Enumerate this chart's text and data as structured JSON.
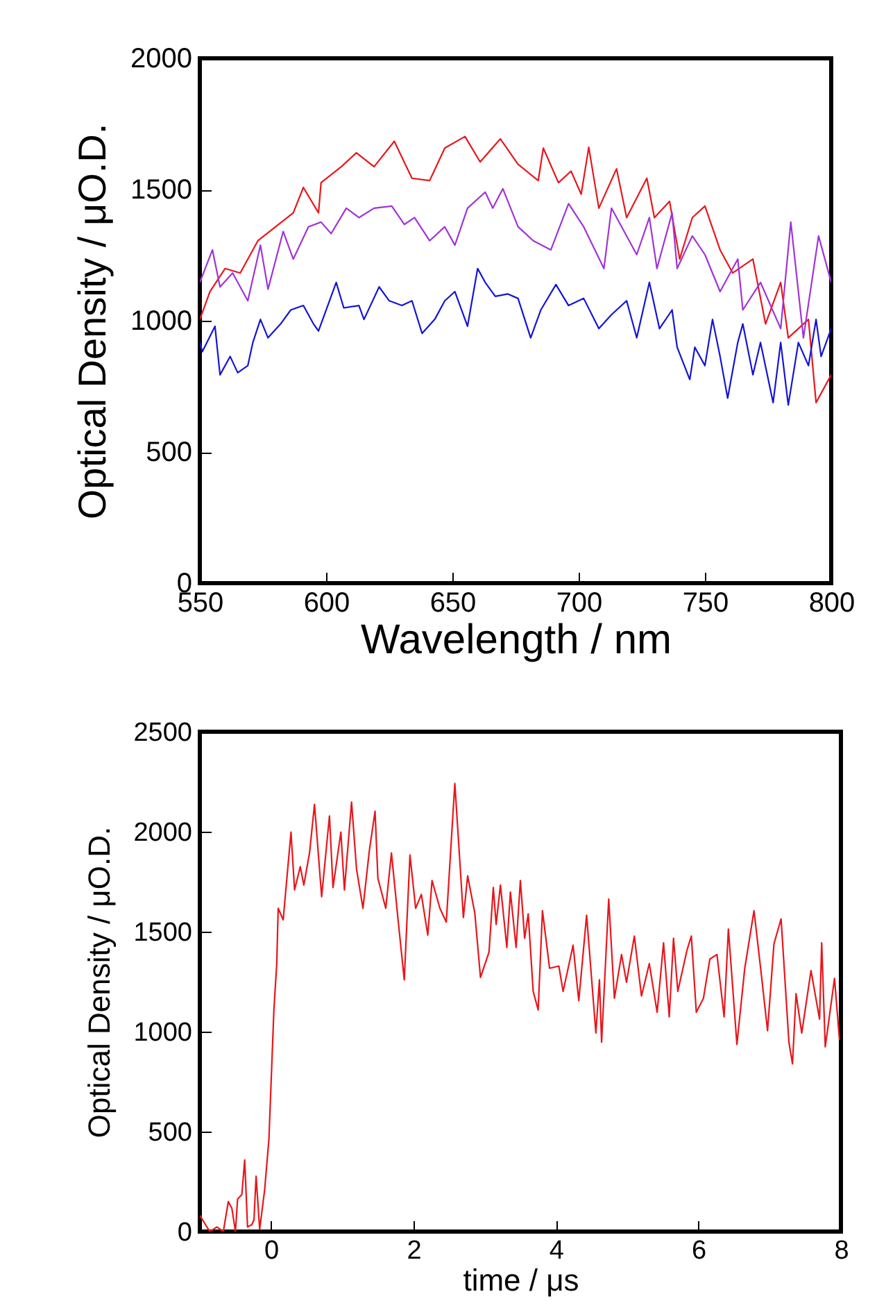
{
  "chart_data": [
    {
      "type": "line",
      "xlabel": "Wavelength / nm",
      "ylabel": "Optical Density / μO.D.",
      "xlim": [
        550,
        800
      ],
      "ylim": [
        0,
        2000
      ],
      "xticks": [
        550,
        600,
        650,
        700,
        750,
        800
      ],
      "yticks": [
        0,
        500,
        1000,
        1500,
        2000
      ],
      "series": [
        {
          "color": "#e8161b",
          "x": [
            550,
            554,
            560,
            566,
            573,
            580,
            587,
            591,
            597,
            598,
            606,
            612,
            619,
            627,
            634,
            641,
            647,
            655,
            661,
            669,
            676,
            684,
            686,
            692,
            697,
            701,
            704,
            708,
            715,
            719,
            727,
            730,
            736,
            740,
            745,
            750,
            756,
            761,
            769,
            774,
            780,
            783,
            791,
            794,
            800
          ],
          "values": [
            1005,
            1111,
            1199,
            1182,
            1305,
            1358,
            1411,
            1508,
            1411,
            1526,
            1587,
            1640,
            1587,
            1684,
            1543,
            1534,
            1658,
            1702,
            1605,
            1693,
            1596,
            1534,
            1658,
            1526,
            1570,
            1482,
            1661,
            1429,
            1579,
            1393,
            1543,
            1393,
            1455,
            1235,
            1393,
            1437,
            1270,
            1182,
            1235,
            988,
            1146,
            935,
            1005,
            688,
            794
          ]
        },
        {
          "color": "#a033d8",
          "x": [
            550,
            555,
            558,
            563,
            569,
            574,
            577,
            583,
            587,
            593,
            598,
            602,
            608,
            613,
            619,
            626,
            631,
            635,
            641,
            647,
            651,
            656,
            663,
            666,
            670,
            676,
            682,
            689,
            696,
            702,
            710,
            713,
            719,
            723,
            728,
            731,
            737,
            739,
            745,
            750,
            756,
            763,
            765,
            772,
            780,
            784,
            789,
            795,
            800
          ],
          "values": [
            1146,
            1270,
            1129,
            1182,
            1076,
            1288,
            1120,
            1340,
            1235,
            1358,
            1376,
            1332,
            1429,
            1393,
            1429,
            1437,
            1367,
            1393,
            1305,
            1358,
            1288,
            1429,
            1490,
            1429,
            1503,
            1358,
            1305,
            1270,
            1446,
            1358,
            1199,
            1429,
            1323,
            1252,
            1393,
            1199,
            1411,
            1199,
            1323,
            1252,
            1111,
            1235,
            1041,
            1146,
            970,
            1376,
            935,
            1323,
            1146
          ]
        },
        {
          "color": "#1414d6",
          "x": [
            550,
            551,
            556,
            558,
            562,
            565,
            569,
            571,
            574,
            577,
            582,
            586,
            591,
            595,
            597,
            604,
            607,
            613,
            615,
            621,
            625,
            630,
            634,
            638,
            643,
            647,
            651,
            656,
            660,
            663,
            667,
            672,
            676,
            681,
            685,
            691,
            696,
            702,
            708,
            713,
            719,
            723,
            728,
            732,
            737,
            739,
            744,
            746,
            750,
            753,
            756,
            759,
            763,
            765,
            769,
            772,
            777,
            780,
            783,
            787,
            791,
            794,
            796,
            800
          ],
          "values": [
            917,
            882,
            979,
            794,
            864,
            802,
            829,
            917,
            1005,
            935,
            988,
            1041,
            1058,
            988,
            961,
            1146,
            1049,
            1058,
            1005,
            1129,
            1076,
            1058,
            1076,
            952,
            1005,
            1076,
            1111,
            979,
            1199,
            1146,
            1093,
            1102,
            1085,
            935,
            1041,
            1138,
            1058,
            1085,
            970,
            1023,
            1076,
            935,
            1146,
            970,
            1041,
            899,
            776,
            899,
            829,
            1005,
            864,
            705,
            917,
            988,
            794,
            917,
            688,
            917,
            679,
            917,
            829,
            1005,
            864,
            970
          ]
        }
      ]
    },
    {
      "type": "line",
      "xlabel": "time / μs",
      "ylabel": "Optical Density / μO.D.",
      "xlim": [
        -1,
        8
      ],
      "ylim": [
        0,
        2500
      ],
      "xticks": [
        0,
        2,
        4,
        6,
        8
      ],
      "yticks": [
        0,
        500,
        1000,
        1500,
        2000,
        2500
      ],
      "series": [
        {
          "color": "#e8161b",
          "x": [
            -1.0,
            -0.94,
            -0.86,
            -0.76,
            -0.67,
            -0.6,
            -0.55,
            -0.5,
            -0.47,
            -0.41,
            -0.37,
            -0.33,
            -0.27,
            -0.24,
            -0.21,
            -0.16,
            -0.09,
            -0.03,
            0.04,
            0.08,
            0.1,
            0.17,
            0.28,
            0.33,
            0.41,
            0.46,
            0.54,
            0.61,
            0.71,
            0.82,
            0.87,
            0.98,
            1.03,
            1.13,
            1.2,
            1.29,
            1.38,
            1.46,
            1.5,
            1.61,
            1.69,
            1.78,
            1.87,
            1.95,
            2.03,
            2.11,
            2.2,
            2.26,
            2.37,
            2.46,
            2.58,
            2.63,
            2.7,
            2.76,
            2.86,
            2.94,
            3.06,
            3.12,
            3.16,
            3.22,
            3.31,
            3.36,
            3.44,
            3.5,
            3.56,
            3.61,
            3.68,
            3.75,
            3.81,
            3.91,
            4.04,
            4.1,
            4.24,
            4.32,
            4.43,
            4.56,
            4.61,
            4.64,
            4.74,
            4.82,
            4.92,
            4.99,
            5.1,
            5.2,
            5.31,
            5.42,
            5.51,
            5.59,
            5.65,
            5.71,
            5.84,
            5.9,
            5.97,
            6.07,
            6.16,
            6.26,
            6.36,
            6.42,
            6.54,
            6.65,
            6.78,
            6.88,
            6.97,
            7.06,
            7.16,
            7.27,
            7.32,
            7.37,
            7.45,
            7.58,
            7.7,
            7.73,
            7.78,
            7.91,
            7.98
          ],
          "values": [
            81,
            46,
            0,
            23,
            0,
            150,
            116,
            0,
            162,
            185,
            358,
            23,
            35,
            58,
            277,
            12,
            208,
            462,
            1109,
            1340,
            1617,
            1559,
            1998,
            1709,
            1825,
            1733,
            1894,
            2137,
            1675,
            2079,
            1721,
            1998,
            1709,
            2148,
            1813,
            1617,
            1906,
            2102,
            1767,
            1617,
            1894,
            1571,
            1259,
            1883,
            1617,
            1686,
            1483,
            1756,
            1617,
            1548,
            2241,
            1964,
            1571,
            1779,
            1594,
            1271,
            1398,
            1721,
            1536,
            1733,
            1421,
            1698,
            1421,
            1756,
            1467,
            1589,
            1201,
            1109,
            1605,
            1317,
            1328,
            1201,
            1432,
            1155,
            1582,
            993,
            1259,
            947,
            1663,
            1167,
            1386,
            1247,
            1478,
            1178,
            1340,
            1097,
            1444,
            1074,
            1467,
            1201,
            1409,
            1478,
            1097,
            1167,
            1363,
            1386,
            1074,
            1513,
            936,
            1317,
            1605,
            1294,
            1005,
            1439,
            1564,
            947,
            839,
            1190,
            993,
            1305,
            1063,
            1444,
            924,
            1266,
            959
          ]
        }
      ]
    }
  ]
}
